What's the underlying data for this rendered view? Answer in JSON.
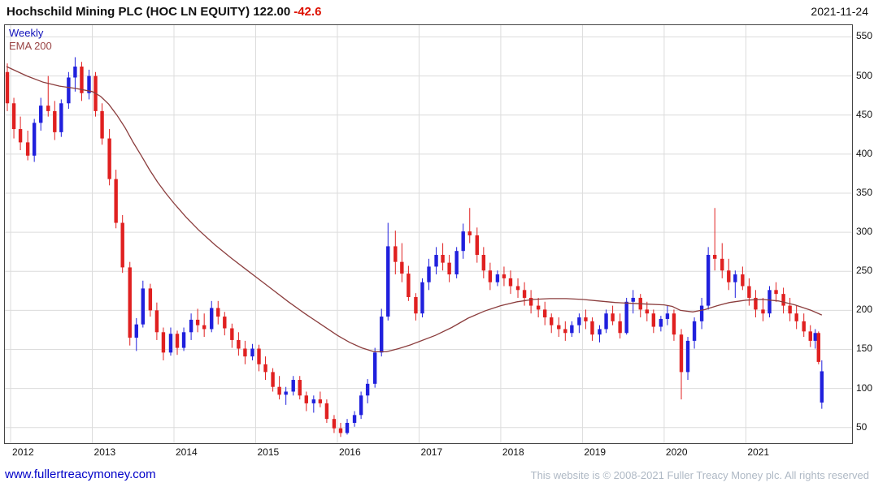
{
  "header": {
    "title": "Hochschild Mining PLC (HOC LN EQUITY) 122.00",
    "change": "-42.6",
    "date": "2021-11-24"
  },
  "legend": {
    "timeframe": "Weekly",
    "overlay": "EMA 200"
  },
  "footer": {
    "site": "www.fullertreacymoney.com",
    "copyright": "This website is © 2008-2021 Fuller Treacy Money plc. All rights reserved"
  },
  "colors": {
    "up": "#2020dd",
    "down": "#e02020",
    "ema": "#8b3d3d",
    "grid": "#dcdcdc",
    "frame": "#444444",
    "change": "#dd1100",
    "link": "#0000c8",
    "copyright": "#aeb8c4"
  },
  "chart_data": {
    "type": "candlestick",
    "title": "Hochschild Mining PLC (HOC LN EQUITY)",
    "frequency": "Weekly",
    "overlay": "EMA 200",
    "last_price": 122.0,
    "change": -42.6,
    "date": "2021-11-24",
    "xlim": [
      2011.93,
      2022.3
    ],
    "ylim": [
      30,
      565
    ],
    "x_ticks": [
      2012,
      2013,
      2014,
      2015,
      2016,
      2017,
      2018,
      2019,
      2020,
      2021
    ],
    "y_ticks": [
      50,
      100,
      150,
      200,
      250,
      300,
      350,
      400,
      450,
      500,
      550
    ],
    "candles": [
      [
        2011.96,
        505,
        516,
        455,
        465
      ],
      [
        2012.04,
        465,
        472,
        420,
        432
      ],
      [
        2012.12,
        432,
        448,
        405,
        415
      ],
      [
        2012.21,
        415,
        430,
        392,
        398
      ],
      [
        2012.29,
        398,
        445,
        390,
        440
      ],
      [
        2012.37,
        440,
        472,
        430,
        462
      ],
      [
        2012.46,
        462,
        500,
        448,
        455
      ],
      [
        2012.54,
        455,
        468,
        418,
        428
      ],
      [
        2012.62,
        428,
        470,
        422,
        465
      ],
      [
        2012.71,
        465,
        505,
        458,
        498
      ],
      [
        2012.79,
        498,
        524,
        480,
        512
      ],
      [
        2012.87,
        512,
        518,
        468,
        478
      ],
      [
        2012.96,
        478,
        508,
        470,
        500
      ],
      [
        2013.04,
        500,
        505,
        448,
        455
      ],
      [
        2013.12,
        455,
        465,
        412,
        420
      ],
      [
        2013.21,
        420,
        432,
        360,
        368
      ],
      [
        2013.29,
        368,
        380,
        305,
        312
      ],
      [
        2013.37,
        312,
        322,
        248,
        255
      ],
      [
        2013.46,
        255,
        262,
        155,
        165
      ],
      [
        2013.54,
        165,
        190,
        148,
        182
      ],
      [
        2013.62,
        182,
        238,
        178,
        228
      ],
      [
        2013.71,
        228,
        234,
        192,
        200
      ],
      [
        2013.79,
        200,
        210,
        162,
        172
      ],
      [
        2013.87,
        172,
        178,
        136,
        146
      ],
      [
        2013.96,
        146,
        178,
        142,
        170
      ],
      [
        2014.04,
        170,
        174,
        143,
        152
      ],
      [
        2014.12,
        152,
        178,
        148,
        172
      ],
      [
        2014.21,
        172,
        196,
        162,
        188
      ],
      [
        2014.29,
        188,
        202,
        172,
        181
      ],
      [
        2014.37,
        181,
        196,
        166,
        176
      ],
      [
        2014.46,
        176,
        212,
        172,
        203
      ],
      [
        2014.54,
        203,
        212,
        182,
        192
      ],
      [
        2014.62,
        192,
        198,
        168,
        177
      ],
      [
        2014.71,
        177,
        183,
        152,
        162
      ],
      [
        2014.79,
        162,
        172,
        142,
        151
      ],
      [
        2014.87,
        151,
        161,
        131,
        141
      ],
      [
        2014.96,
        141,
        157,
        136,
        151
      ],
      [
        2015.04,
        151,
        156,
        122,
        131
      ],
      [
        2015.12,
        131,
        141,
        111,
        121
      ],
      [
        2015.21,
        121,
        126,
        96,
        102
      ],
      [
        2015.29,
        102,
        116,
        86,
        92
      ],
      [
        2015.37,
        92,
        102,
        79,
        96
      ],
      [
        2015.46,
        96,
        116,
        91,
        111
      ],
      [
        2015.54,
        111,
        116,
        86,
        91
      ],
      [
        2015.62,
        91,
        96,
        71,
        81
      ],
      [
        2015.71,
        81,
        91,
        69,
        86
      ],
      [
        2015.79,
        86,
        96,
        76,
        81
      ],
      [
        2015.87,
        81,
        86,
        56,
        61
      ],
      [
        2015.96,
        61,
        66,
        43,
        49
      ],
      [
        2016.04,
        49,
        56,
        38,
        43
      ],
      [
        2016.12,
        43,
        61,
        41,
        56
      ],
      [
        2016.21,
        56,
        71,
        51,
        66
      ],
      [
        2016.29,
        66,
        96,
        61,
        91
      ],
      [
        2016.37,
        91,
        112,
        81,
        106
      ],
      [
        2016.46,
        106,
        152,
        101,
        146
      ],
      [
        2016.54,
        146,
        202,
        141,
        192
      ],
      [
        2016.62,
        192,
        312,
        187,
        282
      ],
      [
        2016.71,
        282,
        302,
        246,
        262
      ],
      [
        2016.79,
        262,
        286,
        236,
        247
      ],
      [
        2016.87,
        247,
        257,
        212,
        217
      ],
      [
        2016.96,
        217,
        222,
        187,
        196
      ],
      [
        2017.04,
        196,
        241,
        191,
        236
      ],
      [
        2017.12,
        236,
        266,
        226,
        256
      ],
      [
        2017.21,
        256,
        281,
        246,
        271
      ],
      [
        2017.29,
        271,
        286,
        251,
        261
      ],
      [
        2017.37,
        261,
        271,
        236,
        246
      ],
      [
        2017.46,
        246,
        281,
        241,
        276
      ],
      [
        2017.54,
        276,
        311,
        266,
        301
      ],
      [
        2017.62,
        301,
        331,
        286,
        296
      ],
      [
        2017.71,
        296,
        306,
        261,
        271
      ],
      [
        2017.79,
        271,
        281,
        241,
        251
      ],
      [
        2017.87,
        251,
        261,
        226,
        236
      ],
      [
        2017.96,
        236,
        251,
        231,
        246
      ],
      [
        2018.04,
        246,
        256,
        231,
        241
      ],
      [
        2018.12,
        241,
        251,
        221,
        231
      ],
      [
        2018.21,
        231,
        241,
        216,
        226
      ],
      [
        2018.29,
        226,
        236,
        206,
        216
      ],
      [
        2018.37,
        216,
        226,
        196,
        206
      ],
      [
        2018.46,
        206,
        216,
        191,
        201
      ],
      [
        2018.54,
        201,
        211,
        181,
        191
      ],
      [
        2018.62,
        191,
        196,
        171,
        181
      ],
      [
        2018.71,
        181,
        191,
        166,
        176
      ],
      [
        2018.79,
        176,
        186,
        161,
        171
      ],
      [
        2018.87,
        171,
        186,
        166,
        181
      ],
      [
        2018.96,
        181,
        196,
        171,
        191
      ],
      [
        2019.04,
        191,
        201,
        176,
        186
      ],
      [
        2019.12,
        186,
        191,
        161,
        169
      ],
      [
        2019.21,
        169,
        181,
        159,
        176
      ],
      [
        2019.29,
        176,
        201,
        171,
        196
      ],
      [
        2019.37,
        196,
        206,
        181,
        186
      ],
      [
        2019.46,
        186,
        196,
        164,
        171
      ],
      [
        2019.54,
        171,
        216,
        169,
        211
      ],
      [
        2019.62,
        211,
        226,
        196,
        216
      ],
      [
        2019.71,
        216,
        221,
        191,
        201
      ],
      [
        2019.79,
        201,
        211,
        186,
        196
      ],
      [
        2019.87,
        196,
        201,
        171,
        179
      ],
      [
        2019.96,
        179,
        193,
        173,
        189
      ],
      [
        2020.04,
        189,
        206,
        181,
        196
      ],
      [
        2020.12,
        196,
        201,
        161,
        169
      ],
      [
        2020.21,
        169,
        176,
        86,
        121
      ],
      [
        2020.29,
        121,
        166,
        111,
        161
      ],
      [
        2020.37,
        161,
        191,
        151,
        186
      ],
      [
        2020.46,
        186,
        216,
        176,
        206
      ],
      [
        2020.54,
        206,
        281,
        201,
        271
      ],
      [
        2020.62,
        271,
        331,
        251,
        266
      ],
      [
        2020.71,
        266,
        286,
        241,
        251
      ],
      [
        2020.79,
        251,
        266,
        226,
        236
      ],
      [
        2020.87,
        236,
        251,
        216,
        246
      ],
      [
        2020.96,
        246,
        256,
        226,
        231
      ],
      [
        2021.04,
        231,
        241,
        206,
        216
      ],
      [
        2021.12,
        216,
        226,
        191,
        201
      ],
      [
        2021.21,
        201,
        216,
        186,
        196
      ],
      [
        2021.29,
        196,
        231,
        191,
        226
      ],
      [
        2021.37,
        226,
        236,
        211,
        221
      ],
      [
        2021.46,
        221,
        229,
        196,
        206
      ],
      [
        2021.54,
        206,
        216,
        186,
        196
      ],
      [
        2021.62,
        196,
        206,
        176,
        186
      ],
      [
        2021.71,
        186,
        196,
        166,
        173
      ],
      [
        2021.79,
        173,
        181,
        153,
        161
      ],
      [
        2021.85,
        161,
        176,
        151,
        171
      ],
      [
        2021.89,
        171,
        173,
        131,
        134
      ],
      [
        2021.93,
        82,
        136,
        74,
        122
      ]
    ],
    "ema200": [
      [
        2011.95,
        512
      ],
      [
        2012.2,
        500
      ],
      [
        2012.4,
        492
      ],
      [
        2012.6,
        487
      ],
      [
        2012.8,
        484
      ],
      [
        2013.0,
        480
      ],
      [
        2013.1,
        474
      ],
      [
        2013.2,
        464
      ],
      [
        2013.3,
        450
      ],
      [
        2013.4,
        434
      ],
      [
        2013.5,
        415
      ],
      [
        2013.6,
        398
      ],
      [
        2013.7,
        380
      ],
      [
        2013.8,
        364
      ],
      [
        2013.9,
        350
      ],
      [
        2014.0,
        337
      ],
      [
        2014.15,
        319
      ],
      [
        2014.3,
        303
      ],
      [
        2014.5,
        284
      ],
      [
        2014.7,
        267
      ],
      [
        2014.9,
        251
      ],
      [
        2015.0,
        243
      ],
      [
        2015.2,
        227
      ],
      [
        2015.4,
        211
      ],
      [
        2015.6,
        196
      ],
      [
        2015.8,
        182
      ],
      [
        2016.0,
        168
      ],
      [
        2016.15,
        159
      ],
      [
        2016.3,
        152
      ],
      [
        2016.45,
        147
      ],
      [
        2016.6,
        147
      ],
      [
        2016.75,
        151
      ],
      [
        2016.9,
        156
      ],
      [
        2017.0,
        160
      ],
      [
        2017.2,
        168
      ],
      [
        2017.4,
        178
      ],
      [
        2017.6,
        190
      ],
      [
        2017.8,
        199
      ],
      [
        2018.0,
        206
      ],
      [
        2018.2,
        211
      ],
      [
        2018.4,
        214
      ],
      [
        2018.6,
        215
      ],
      [
        2018.8,
        215
      ],
      [
        2019.0,
        214
      ],
      [
        2019.2,
        212
      ],
      [
        2019.4,
        210
      ],
      [
        2019.6,
        209
      ],
      [
        2019.8,
        208
      ],
      [
        2020.0,
        207
      ],
      [
        2020.1,
        205
      ],
      [
        2020.2,
        200
      ],
      [
        2020.35,
        198
      ],
      [
        2020.5,
        201
      ],
      [
        2020.65,
        206
      ],
      [
        2020.8,
        210
      ],
      [
        2021.0,
        213
      ],
      [
        2021.2,
        214
      ],
      [
        2021.4,
        212
      ],
      [
        2021.6,
        207
      ],
      [
        2021.8,
        200
      ],
      [
        2021.93,
        194
      ]
    ]
  }
}
